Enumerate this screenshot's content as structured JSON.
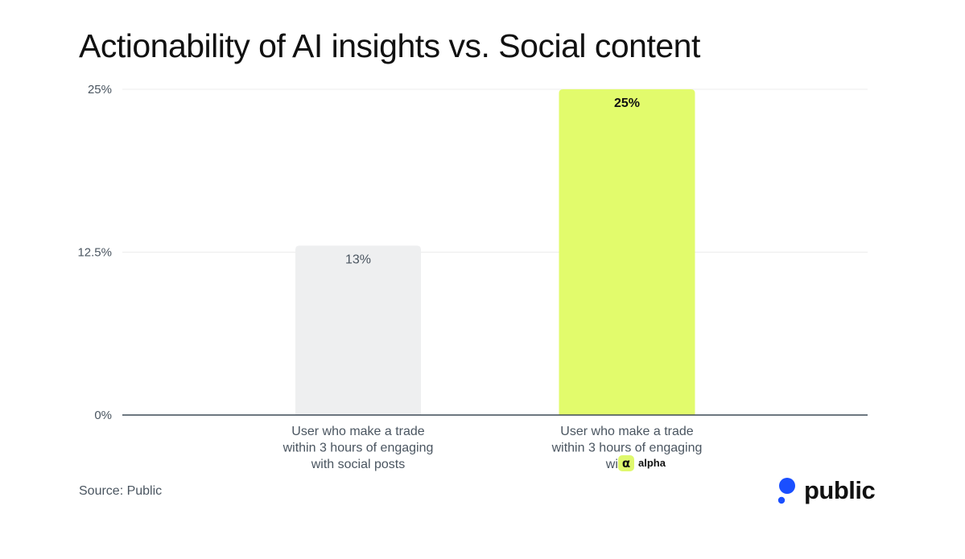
{
  "title": "Actionability of AI insights vs. Social content",
  "source": "Source: Public",
  "logo": {
    "text": "public",
    "icon": "public-logo-dot-icon",
    "color": "#1a4fff"
  },
  "alpha_badge": {
    "glyph": "α",
    "text": "alpha",
    "color": "#dff86d"
  },
  "chart_data": {
    "type": "bar",
    "title": "Actionability of AI insights vs. Social content",
    "categories": [
      [
        "User who make a trade",
        "within 3 hours of engaging",
        "with social posts"
      ],
      [
        "User who make a trade",
        "within 3 hours of engaging",
        "with"
      ]
    ],
    "values": [
      13,
      25
    ],
    "value_labels": [
      "13%",
      "25%"
    ],
    "colors": [
      "#eeeff0",
      "#e2fb6c"
    ],
    "ylim": [
      0,
      25
    ],
    "yticks": [
      0,
      12.5,
      25
    ],
    "ytick_labels": [
      "0%",
      "12.5%",
      "25%"
    ],
    "grid": true,
    "xlabel": "",
    "ylabel": ""
  }
}
